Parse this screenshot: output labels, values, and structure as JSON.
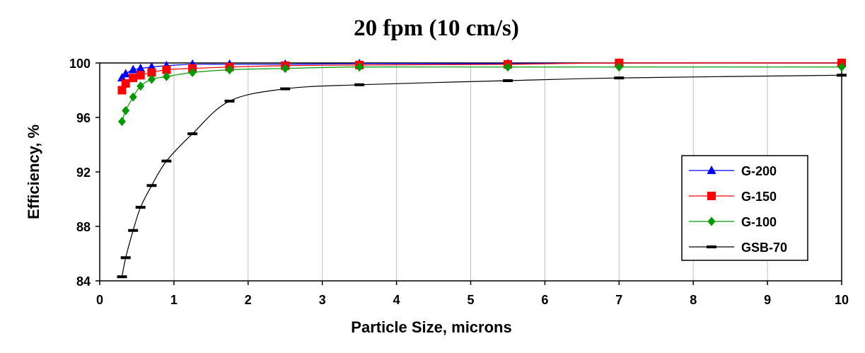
{
  "chart_data": {
    "type": "line",
    "title": "20 fpm (10 cm/s)",
    "xlabel": "Particle Size, microns",
    "ylabel": "Efficiency, %",
    "xlim": [
      0,
      10
    ],
    "ylim": [
      84,
      100
    ],
    "xticks": [
      "0",
      "1",
      "2",
      "3",
      "4",
      "5",
      "6",
      "7",
      "8",
      "9",
      "10"
    ],
    "yticks": [
      "84",
      "88",
      "92",
      "96",
      "100"
    ],
    "grid": "vertical",
    "legend_position": "right",
    "series": [
      {
        "name": "G-200",
        "color": "#0000ff",
        "marker": "triangle",
        "x": [
          0.3,
          0.35,
          0.45,
          0.55,
          0.7,
          0.9,
          1.25,
          1.75,
          2.5,
          3.5,
          5.5,
          7,
          10
        ],
        "y": [
          98.9,
          99.2,
          99.5,
          99.6,
          99.7,
          99.8,
          99.9,
          99.9,
          99.9,
          99.95,
          99.95,
          100,
          100
        ]
      },
      {
        "name": "G-150",
        "color": "#ff0000",
        "marker": "square",
        "x": [
          0.3,
          0.35,
          0.45,
          0.55,
          0.7,
          0.9,
          1.25,
          1.75,
          2.5,
          3.5,
          5.5,
          7,
          10
        ],
        "y": [
          98.0,
          98.5,
          98.9,
          99.1,
          99.3,
          99.5,
          99.6,
          99.7,
          99.8,
          99.85,
          99.9,
          100,
          100
        ]
      },
      {
        "name": "G-100",
        "color": "#009900",
        "marker": "diamond",
        "x": [
          0.3,
          0.35,
          0.45,
          0.55,
          0.7,
          0.9,
          1.25,
          1.75,
          2.5,
          3.5,
          5.5,
          7,
          10
        ],
        "y": [
          95.7,
          96.5,
          97.5,
          98.3,
          98.8,
          99.0,
          99.3,
          99.5,
          99.6,
          99.7,
          99.7,
          99.7,
          99.7
        ]
      },
      {
        "name": "GSB-70",
        "color": "#000000",
        "marker": "dash",
        "x": [
          0.3,
          0.35,
          0.45,
          0.55,
          0.7,
          0.9,
          1.25,
          1.75,
          2.5,
          3.5,
          5.5,
          7,
          10
        ],
        "y": [
          84.3,
          85.7,
          87.7,
          89.4,
          91.0,
          92.8,
          94.8,
          97.2,
          98.1,
          98.4,
          98.7,
          98.9,
          99.1
        ]
      }
    ]
  }
}
